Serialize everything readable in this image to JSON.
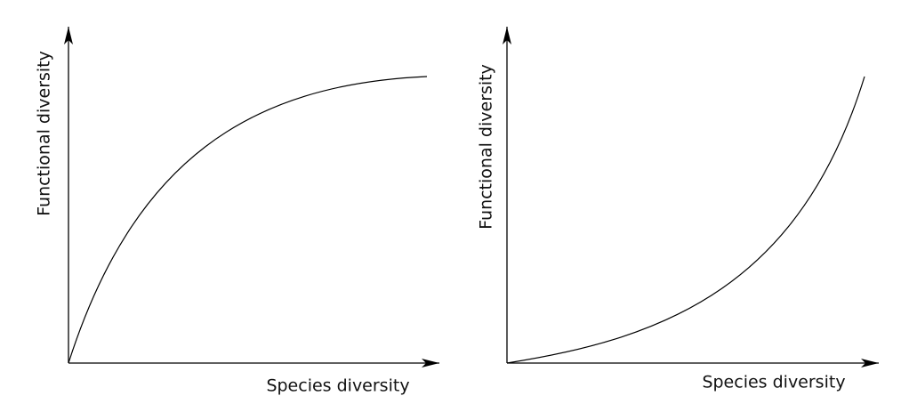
{
  "panels": [
    {
      "x_label": "Species diversity",
      "y_label": "Functional diversity"
    },
    {
      "x_label": "Species diversity",
      "y_label": "Functional diversity"
    }
  ]
}
